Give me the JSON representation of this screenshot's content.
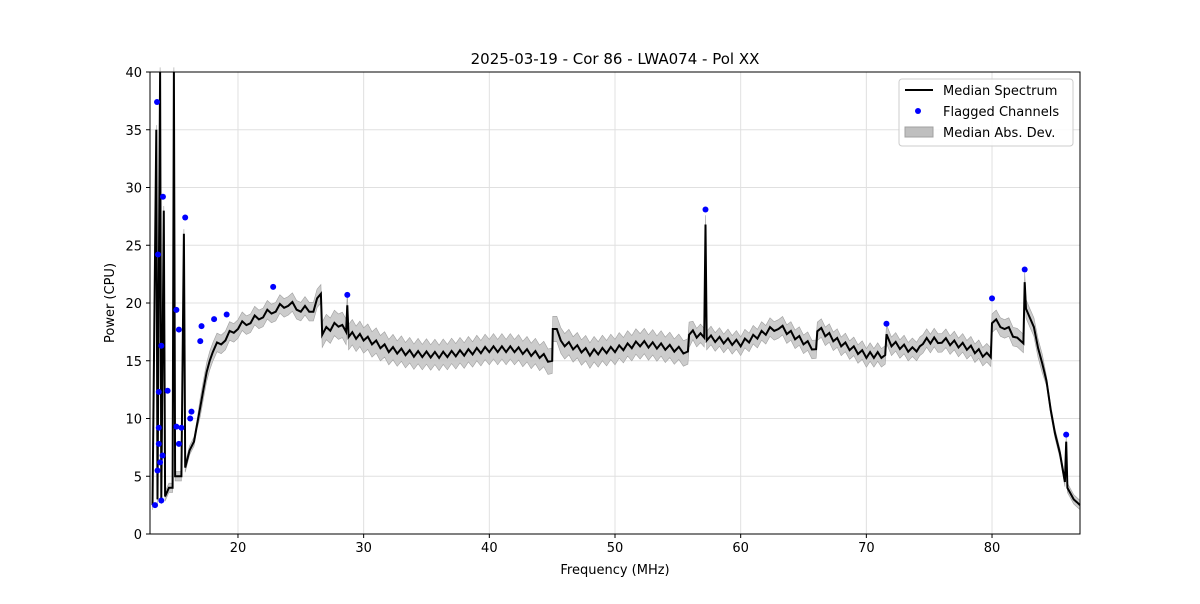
{
  "chart_data": {
    "type": "line",
    "title": "2025-03-19 - Cor 86 - LWA074 - Pol XX",
    "xlabel": "Frequency (MHz)",
    "ylabel": "Power (CPU)",
    "xlim": [
      13.0,
      87.0
    ],
    "ylim": [
      0,
      40
    ],
    "xticks": [
      20,
      30,
      40,
      50,
      60,
      70,
      80
    ],
    "yticks": [
      0,
      5,
      10,
      15,
      20,
      25,
      30,
      35,
      40
    ],
    "grid": true,
    "legend_position": "top-right",
    "legend": [
      "Median Spectrum",
      "Flagged Channels",
      "Median Abs. Dev."
    ],
    "colors": {
      "median": "#000000",
      "flagged": "#0000ff",
      "mad": "#bfbfbf"
    },
    "median_spectrum": [
      [
        13.2,
        2.5
      ],
      [
        13.5,
        35
      ],
      [
        13.6,
        3
      ],
      [
        13.8,
        40
      ],
      [
        13.9,
        3
      ],
      [
        14.1,
        28
      ],
      [
        14.2,
        3.5
      ],
      [
        14.8,
        4
      ],
      [
        14.9,
        40
      ],
      [
        15.0,
        5
      ],
      [
        15.5,
        5
      ],
      [
        15.7,
        26
      ],
      [
        15.8,
        6
      ],
      [
        16.5,
        8
      ],
      [
        17,
        11
      ],
      [
        17.5,
        14
      ],
      [
        18,
        16
      ],
      [
        19,
        17
      ],
      [
        20,
        18
      ],
      [
        21,
        18.5
      ],
      [
        22,
        19
      ],
      [
        23,
        19.5
      ],
      [
        24,
        20
      ],
      [
        25,
        19.5
      ],
      [
        26,
        19.5
      ],
      [
        26.6,
        20.8
      ],
      [
        26.7,
        17.5
      ],
      [
        28,
        18.2
      ],
      [
        28.6,
        17.5
      ],
      [
        28.7,
        19.8
      ],
      [
        28.8,
        17.3
      ],
      [
        30,
        17
      ],
      [
        32,
        16
      ],
      [
        34,
        15.6
      ],
      [
        36,
        15.5
      ],
      [
        38,
        15.7
      ],
      [
        40,
        16
      ],
      [
        42,
        16
      ],
      [
        44,
        15.5
      ],
      [
        45,
        15
      ],
      [
        45.05,
        18
      ],
      [
        46,
        16.5
      ],
      [
        48,
        15.7
      ],
      [
        50,
        16
      ],
      [
        52,
        16.5
      ],
      [
        54,
        16.2
      ],
      [
        55.8,
        15.8
      ],
      [
        55.9,
        17.5
      ],
      [
        57.1,
        17
      ],
      [
        57.2,
        26.8
      ],
      [
        57.3,
        17
      ],
      [
        60,
        16.5
      ],
      [
        62,
        17.5
      ],
      [
        63,
        18
      ],
      [
        66,
        16
      ],
      [
        66.1,
        17.8
      ],
      [
        68,
        16.5
      ],
      [
        70,
        15.5
      ],
      [
        71.5,
        15.5
      ],
      [
        71.6,
        17.3
      ],
      [
        72,
        16.5
      ],
      [
        74,
        15.8
      ],
      [
        74.5,
        16.7
      ],
      [
        76,
        16.8
      ],
      [
        78,
        16.2
      ],
      [
        79.9,
        15.3
      ],
      [
        80,
        18.5
      ],
      [
        81,
        18
      ],
      [
        82,
        17
      ],
      [
        82.5,
        16.5
      ],
      [
        82.6,
        21.8
      ],
      [
        82.7,
        19.5
      ],
      [
        83,
        19
      ],
      [
        84,
        15
      ],
      [
        85,
        9
      ],
      [
        85.8,
        4.5
      ],
      [
        85.9,
        8
      ],
      [
        86,
        4
      ],
      [
        86.5,
        3
      ],
      [
        87,
        2.5
      ]
    ],
    "median_abs_dev_typical": 1.0,
    "flagged_channels": [
      [
        13.56,
        37.4
      ],
      [
        13.64,
        24.2
      ],
      [
        14.03,
        29.2
      ],
      [
        13.9,
        16.3
      ],
      [
        13.7,
        12.3
      ],
      [
        14.4,
        12.4
      ],
      [
        13.7,
        9.2
      ],
      [
        13.7,
        7.8
      ],
      [
        13.6,
        5.5
      ],
      [
        13.8,
        6.2
      ],
      [
        14.0,
        6.8
      ],
      [
        13.4,
        2.5
      ],
      [
        13.9,
        2.9
      ],
      [
        15.8,
        27.4
      ],
      [
        15.1,
        19.4
      ],
      [
        15.3,
        17.7
      ],
      [
        15.1,
        9.3
      ],
      [
        15.5,
        9.2
      ],
      [
        15.3,
        7.8
      ],
      [
        16.3,
        10.6
      ],
      [
        16.2,
        10.0
      ],
      [
        17.0,
        16.7
      ],
      [
        17.1,
        18.0
      ],
      [
        18.1,
        18.6
      ],
      [
        19.1,
        19.0
      ],
      [
        22.8,
        21.4
      ],
      [
        28.7,
        20.7
      ],
      [
        57.2,
        28.1
      ],
      [
        71.6,
        18.2
      ],
      [
        80.0,
        20.4
      ],
      [
        82.6,
        22.9
      ],
      [
        85.9,
        8.6
      ]
    ]
  }
}
